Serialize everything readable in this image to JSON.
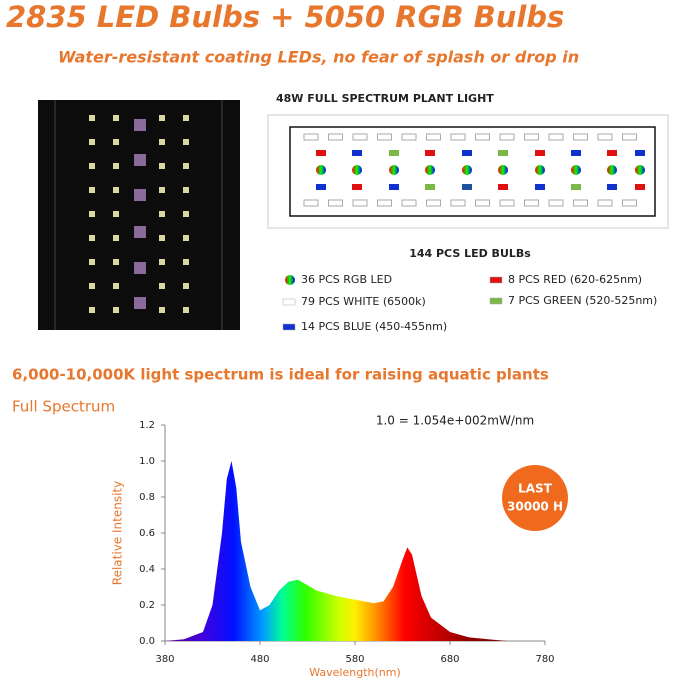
{
  "header": {
    "title": "2835 LED Bulbs + 5050 RGB Bulbs",
    "subtitle": "Water-resistant coating LEDs, no fear of splash or drop in"
  },
  "product": {
    "name": "48W FULL SPECTRUM PLANT LIGHT",
    "total": "144 PCS LED BULBs",
    "legend": [
      {
        "label": "36 PCS RGB LED",
        "color": "rgb"
      },
      {
        "label": "79 PCS WHITE (6500k)",
        "color": "#ffffff"
      },
      {
        "label": "14 PCS BLUE (450-455nm)",
        "color": "#1030d0"
      },
      {
        "label": "8 PCS RED (620-625nm)",
        "color": "#e01010"
      },
      {
        "label": "7 PCS GREEN (520-525nm)",
        "color": "#7ab848"
      }
    ]
  },
  "spectrum_note": "6,000-10,000K light spectrum is ideal for raising aquatic plants",
  "badge": {
    "line1": "LAST",
    "line2": "30000 H"
  },
  "chart_data": {
    "type": "area",
    "title": "Full Spectrum",
    "annotation": "1.0 = 1.054e+002mW/nm",
    "x_label": "Wavelength(nm)",
    "y_label": "Relative Intensity",
    "x": [
      380,
      400,
      420,
      430,
      440,
      445,
      450,
      455,
      460,
      470,
      480,
      490,
      500,
      510,
      520,
      530,
      540,
      560,
      580,
      600,
      610,
      620,
      630,
      635,
      640,
      650,
      660,
      680,
      700,
      720,
      740,
      780
    ],
    "values": [
      0,
      0.01,
      0.05,
      0.2,
      0.6,
      0.9,
      1.0,
      0.85,
      0.55,
      0.3,
      0.17,
      0.2,
      0.28,
      0.33,
      0.34,
      0.31,
      0.28,
      0.25,
      0.23,
      0.21,
      0.22,
      0.3,
      0.45,
      0.52,
      0.48,
      0.25,
      0.13,
      0.05,
      0.02,
      0.01,
      0,
      0
    ],
    "xlim": [
      380,
      780
    ],
    "ylim": [
      0,
      1.2
    ],
    "xticks": [
      380,
      480,
      580,
      680,
      780
    ],
    "yticks": [
      {
        "value": 0,
        "label": "0.0"
      },
      0.2,
      0.4,
      0.6,
      0.8,
      {
        "value": 1,
        "label": "1.0"
      },
      1.2
    ]
  }
}
